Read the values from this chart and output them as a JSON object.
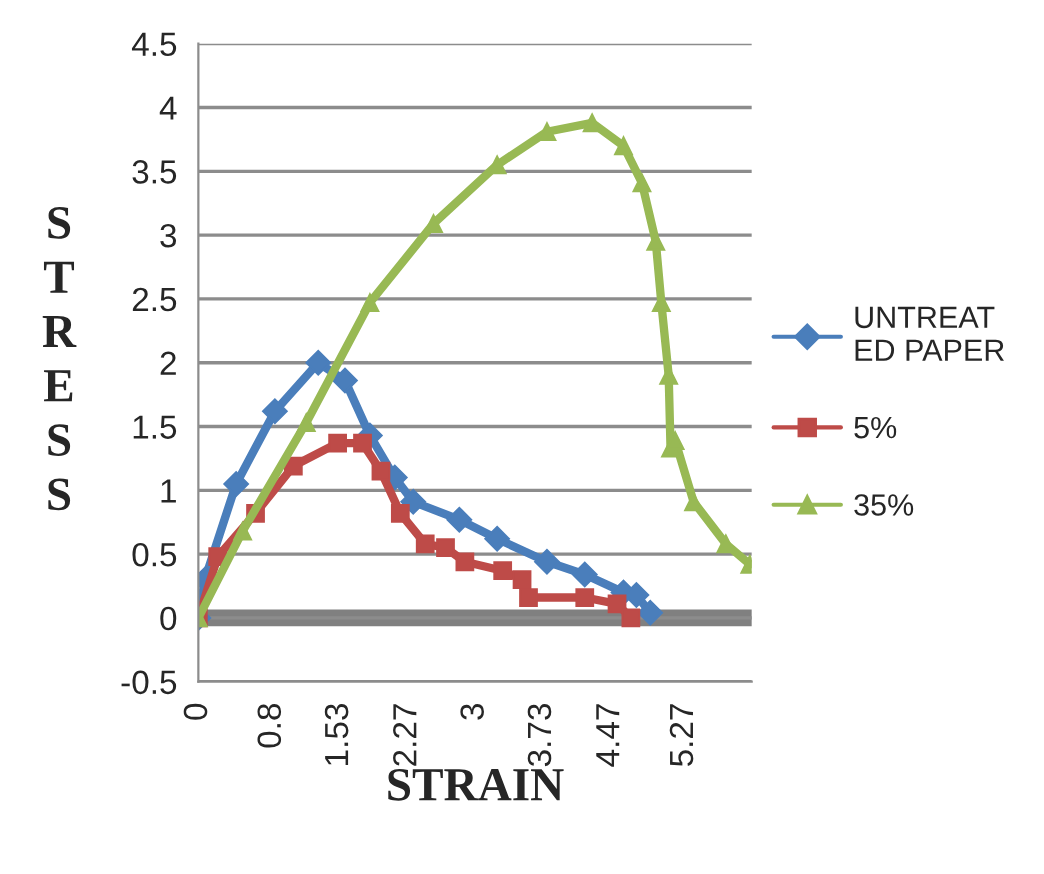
{
  "chart_data": {
    "type": "line",
    "xlabel": "STRAIN",
    "ylabel": "STRESS",
    "xlim": [
      0,
      6
    ],
    "xticks": [
      0,
      0.8,
      1.53,
      2.27,
      3,
      3.73,
      4.47,
      5.27
    ],
    "ylim": [
      -0.5,
      4.5
    ],
    "yticks": [
      -0.5,
      0,
      0.5,
      1,
      1.5,
      2,
      2.5,
      3,
      3.5,
      4,
      4.5
    ],
    "grid": "y",
    "legend": "right",
    "ref_lines": [
      {
        "axis": "y",
        "value": 0,
        "color": "#808080"
      }
    ],
    "series": [
      {
        "name": "UNTREATED PAPER",
        "color": "#4a7ebb",
        "marker": "diamond",
        "x": [
          0,
          0.07,
          0.41,
          0.83,
          1.3,
          1.59,
          1.86,
          2.13,
          2.33,
          2.83,
          3.24,
          3.78,
          4.19,
          4.61,
          4.75,
          4.9
        ],
        "values": [
          0,
          0.3,
          1.05,
          1.62,
          2.0,
          1.86,
          1.43,
          1.1,
          0.91,
          0.77,
          0.62,
          0.44,
          0.34,
          0.2,
          0.18,
          0.04
        ]
      },
      {
        "name": "5%",
        "color": "#be4b48",
        "marker": "square",
        "x": [
          0,
          0.21,
          0.62,
          1.03,
          1.51,
          1.78,
          1.98,
          2.19,
          2.46,
          2.68,
          2.89,
          3.3,
          3.51,
          3.58,
          4.19,
          4.54,
          4.69
        ],
        "values": [
          0,
          0.48,
          0.82,
          1.19,
          1.37,
          1.37,
          1.15,
          0.82,
          0.58,
          0.55,
          0.44,
          0.37,
          0.3,
          0.16,
          0.16,
          0.11,
          0
        ]
      },
      {
        "name": "35%",
        "color": "#98b954",
        "marker": "triangle",
        "x": [
          0,
          0.48,
          1.17,
          1.86,
          2.55,
          3.24,
          3.78,
          4.27,
          4.61,
          4.81,
          4.96,
          5.02,
          5.1,
          5.12,
          5.17,
          5.37,
          5.72,
          5.98
        ],
        "values": [
          0,
          0.68,
          1.53,
          2.47,
          3.09,
          3.55,
          3.81,
          3.88,
          3.7,
          3.41,
          2.95,
          2.47,
          1.9,
          1.33,
          1.39,
          0.91,
          0.58,
          0.42
        ]
      }
    ]
  }
}
